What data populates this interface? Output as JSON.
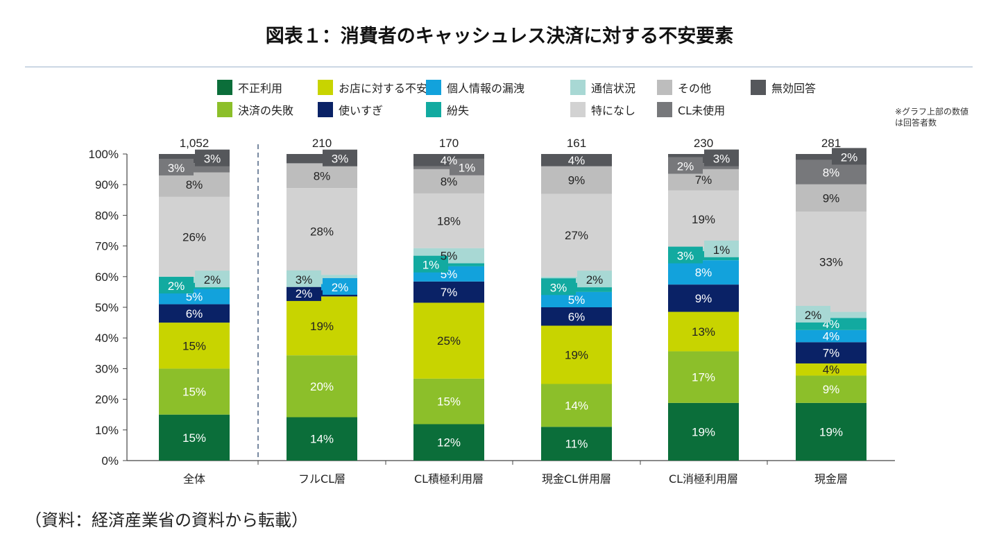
{
  "title": "図表１：消費者のキャッシュレス決済に対する不安要素",
  "note": "※グラフ上部の数値は回答者数",
  "source": "（資料：経済産業省の資料から転載）",
  "chart_data": {
    "type": "bar",
    "stacked": true,
    "title": "図表１：消費者のキャッシュレス決済に対する不安要素",
    "xlabel": "",
    "ylabel": "",
    "ylim": [
      0,
      100
    ],
    "yticks": [
      "0%",
      "10%",
      "20%",
      "30%",
      "40%",
      "50%",
      "60%",
      "70%",
      "80%",
      "90%",
      "100%"
    ],
    "grid": false,
    "legend_position": "top",
    "categories": [
      "全体",
      "フルCL層",
      "CL積極利用層",
      "現金CL併用層",
      "CL消極利用層",
      "現金層"
    ],
    "respondents": [
      "1,052",
      "210",
      "170",
      "161",
      "230",
      "281"
    ],
    "series": [
      {
        "name": "不正利用",
        "color": "#0b6e3a",
        "values": [
          15,
          14,
          12,
          11,
          19,
          19
        ]
      },
      {
        "name": "決済の失敗",
        "color": "#8cbf2a",
        "values": [
          15,
          20,
          15,
          14,
          17,
          9
        ]
      },
      {
        "name": "お店に対する不安",
        "color": "#c8d400",
        "values": [
          15,
          19,
          25,
          19,
          13,
          4
        ]
      },
      {
        "name": "使いすぎ",
        "color": "#0a2266",
        "values": [
          6,
          2,
          7,
          6,
          9,
          7
        ]
      },
      {
        "name": "個人情報の漏洩",
        "color": "#12a2dc",
        "values": [
          5,
          2,
          5,
          5,
          8,
          4
        ]
      },
      {
        "name": "紛失",
        "color": "#12aaa0",
        "values": [
          2,
          0,
          1,
          3,
          3,
          4
        ]
      },
      {
        "name": "通信状況",
        "color": "#a8d8d4",
        "values": [
          2,
          3,
          5,
          2,
          1,
          2
        ]
      },
      {
        "name": "特になし",
        "color": "#d2d2d2",
        "values": [
          26,
          28,
          18,
          27,
          19,
          33
        ]
      },
      {
        "name": "その他",
        "color": "#bdbdbd",
        "values": [
          8,
          8,
          8,
          9,
          7,
          9
        ]
      },
      {
        "name": "CL未使用",
        "color": "#77787b",
        "values": [
          3,
          0,
          1,
          0,
          2,
          8
        ]
      },
      {
        "name": "無効回答",
        "color": "#55575b",
        "values": [
          3,
          3,
          4,
          4,
          3,
          2
        ]
      }
    ],
    "legend_order": [
      "不正利用",
      "お店に対する不安",
      "個人情報の漏洩",
      "通信状況",
      "その他",
      "無効回答",
      "決済の失敗",
      "使いすぎ",
      "紛失",
      "特になし",
      "CL未使用"
    ]
  }
}
